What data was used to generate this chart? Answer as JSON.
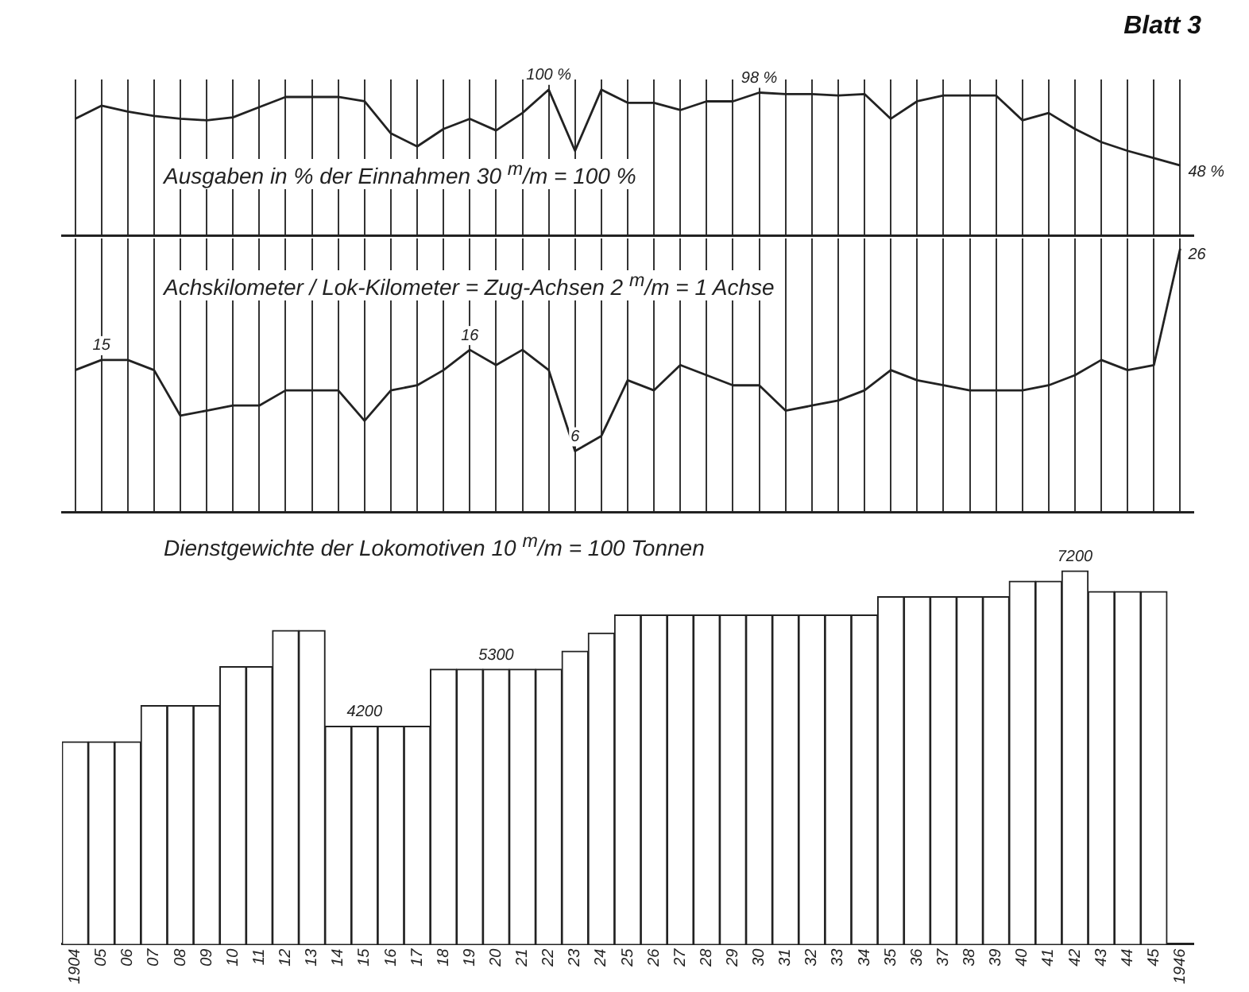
{
  "chart_data": [
    {
      "type": "line",
      "title": "Ausgaben in % der Einnahmen 30 $^{m}$/m = 100 %",
      "annotations": [
        "Blatt 3"
      ],
      "categories": [
        "1904",
        "05",
        "06",
        "07",
        "08",
        "09",
        "10",
        "11",
        "12",
        "13",
        "14",
        "15",
        "16",
        "17",
        "18",
        "19",
        "20",
        "21",
        "22",
        "23",
        "24",
        "25",
        "26",
        "27",
        "28",
        "29",
        "30",
        "31",
        "32",
        "33",
        "34",
        "35",
        "36",
        "37",
        "38",
        "39",
        "40",
        "41",
        "42",
        "43",
        "44",
        "45",
        "1946"
      ],
      "series": [
        {
          "color": "#222222",
          "values": [
            80,
            89,
            85,
            82,
            80,
            79,
            81,
            88,
            95,
            95,
            95,
            92,
            70,
            61,
            73,
            80,
            72,
            84,
            100,
            58,
            100,
            91,
            91,
            86,
            92,
            92,
            98,
            97,
            97,
            96,
            97,
            80,
            92,
            96,
            96,
            96,
            79,
            84,
            73,
            64,
            58,
            53,
            48
          ],
          "value_labels": [
            null,
            null,
            null,
            null,
            null,
            null,
            null,
            null,
            null,
            null,
            null,
            null,
            null,
            null,
            null,
            null,
            null,
            null,
            "100 %",
            null,
            null,
            null,
            null,
            null,
            null,
            null,
            "98 %",
            null,
            null,
            null,
            null,
            null,
            null,
            null,
            null,
            null,
            null,
            null,
            null,
            null,
            null,
            null,
            "48 %"
          ]
        }
      ],
      "ylim": [
        0,
        107
      ],
      "grid": "x",
      "tick_labels": false,
      "marker": "none"
    },
    {
      "type": "line",
      "title": "Achskilometer / Lok-Kilometer = Zug-Achsen 2 $^{m}$/m = 1 Achse",
      "categories": [
        "1904",
        "05",
        "06",
        "07",
        "08",
        "09",
        "10",
        "11",
        "12",
        "13",
        "14",
        "15",
        "16",
        "17",
        "18",
        "19",
        "20",
        "21",
        "22",
        "23",
        "24",
        "25",
        "26",
        "27",
        "28",
        "29",
        "30",
        "31",
        "32",
        "33",
        "34",
        "35",
        "36",
        "37",
        "38",
        "39",
        "40",
        "41",
        "42",
        "43",
        "44",
        "45",
        "1946"
      ],
      "series": [
        {
          "color": "#222222",
          "values": [
            14,
            15,
            15,
            14,
            9.5,
            10,
            10.5,
            10.5,
            12,
            12,
            12,
            9,
            12,
            12.5,
            14,
            16,
            14.5,
            16,
            14,
            6,
            7.5,
            13,
            12,
            14.5,
            13.5,
            12.5,
            12.5,
            10,
            10.5,
            11,
            12,
            14,
            13,
            12.5,
            12,
            12,
            12,
            12.5,
            13.5,
            15,
            14,
            14.5,
            26
          ],
          "value_labels": [
            null,
            "15",
            null,
            null,
            null,
            null,
            null,
            null,
            null,
            null,
            null,
            null,
            null,
            null,
            null,
            "16",
            null,
            null,
            null,
            "6",
            null,
            null,
            null,
            null,
            null,
            null,
            null,
            null,
            null,
            null,
            null,
            null,
            null,
            null,
            null,
            null,
            null,
            null,
            null,
            null,
            null,
            null,
            "26"
          ]
        }
      ],
      "ylim": [
        0,
        27
      ],
      "grid": "x",
      "tick_labels": false,
      "marker": "none"
    },
    {
      "type": "bar",
      "title": "Dienstgewichte der Lokomotiven 10 $^{m}$/m = 100 Tonnen",
      "categories": [
        "1904",
        "05",
        "06",
        "07",
        "08",
        "09",
        "10",
        "11",
        "12",
        "13",
        "14",
        "15",
        "16",
        "17",
        "18",
        "19",
        "20",
        "21",
        "22",
        "23",
        "24",
        "25",
        "26",
        "27",
        "28",
        "29",
        "30",
        "31",
        "32",
        "33",
        "34",
        "35",
        "36",
        "37",
        "38",
        "39",
        "40",
        "41",
        "42",
        "43",
        "44",
        "45",
        "1946"
      ],
      "series": [
        {
          "color": "#ffffff",
          "values": [
            3900,
            3900,
            3900,
            4600,
            4600,
            4600,
            5350,
            5350,
            6050,
            6050,
            4200,
            4200,
            4200,
            4200,
            5300,
            5300,
            5300,
            5300,
            5300,
            5650,
            6000,
            6350,
            6350,
            6350,
            6350,
            6350,
            6350,
            6350,
            6350,
            6350,
            6350,
            6700,
            6700,
            6700,
            6700,
            6700,
            7000,
            7000,
            7200,
            6800,
            6800,
            6800,
            null
          ],
          "value_labels": [
            null,
            null,
            null,
            null,
            null,
            null,
            null,
            null,
            null,
            null,
            null,
            "4200",
            null,
            null,
            null,
            null,
            "5300",
            null,
            null,
            null,
            null,
            null,
            null,
            null,
            null,
            null,
            null,
            null,
            null,
            null,
            null,
            null,
            null,
            null,
            null,
            null,
            null,
            null,
            "7200",
            null,
            null,
            null,
            null
          ]
        }
      ],
      "tick_labels": "x"
    }
  ]
}
